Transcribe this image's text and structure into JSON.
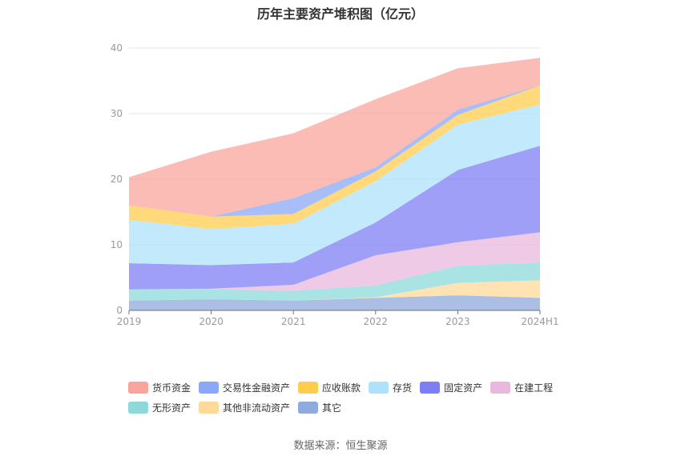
{
  "chart_data": {
    "type": "area",
    "title": "历年主要资产堆积图（亿元）",
    "x": [
      "2019",
      "2020",
      "2021",
      "2022",
      "2023",
      "2024H1"
    ],
    "ylim": [
      0,
      40
    ],
    "yticks": [
      0,
      10,
      20,
      30,
      40
    ],
    "grid": true,
    "legend_position": "bottom",
    "series": [
      {
        "name": "其它",
        "color": "#8faadc",
        "values": [
          1.5,
          1.7,
          1.5,
          1.9,
          2.3,
          1.9
        ]
      },
      {
        "name": "其他非流动资产",
        "color": "#ffd99a",
        "values": [
          0.0,
          0.0,
          0.0,
          0.1,
          1.9,
          2.7
        ]
      },
      {
        "name": "无形资产",
        "color": "#8dd9d9",
        "values": [
          1.7,
          1.5,
          1.5,
          1.8,
          2.6,
          2.7
        ]
      },
      {
        "name": "在建工程",
        "color": "#e9b8de",
        "values": [
          0.0,
          0.1,
          0.9,
          4.6,
          3.6,
          4.6
        ]
      },
      {
        "name": "固定资产",
        "color": "#7f7ff5",
        "values": [
          4.0,
          3.6,
          3.4,
          5.0,
          11.0,
          13.2
        ]
      },
      {
        "name": "存货",
        "color": "#aee2fb",
        "values": [
          6.6,
          5.5,
          5.9,
          6.3,
          6.9,
          6.3
        ]
      },
      {
        "name": "应收账款",
        "color": "#ffcc4d",
        "values": [
          2.2,
          1.9,
          1.5,
          1.5,
          1.5,
          2.9
        ]
      },
      {
        "name": "交易性金融资产",
        "color": "#8aa8f7",
        "values": [
          0.0,
          0.0,
          2.4,
          0.6,
          0.8,
          0.0
        ]
      },
      {
        "name": "货币资金",
        "color": "#faa59c",
        "values": [
          4.3,
          9.9,
          9.9,
          10.4,
          6.3,
          4.2
        ]
      }
    ]
  },
  "legend_rows": [
    [
      "货币资金",
      "交易性金融资产",
      "应收账款",
      "存货",
      "固定资产",
      "在建工程"
    ],
    [
      "无形资产",
      "其他非流动资产",
      "其它"
    ]
  ],
  "source_text": "数据来源：恒生聚源"
}
